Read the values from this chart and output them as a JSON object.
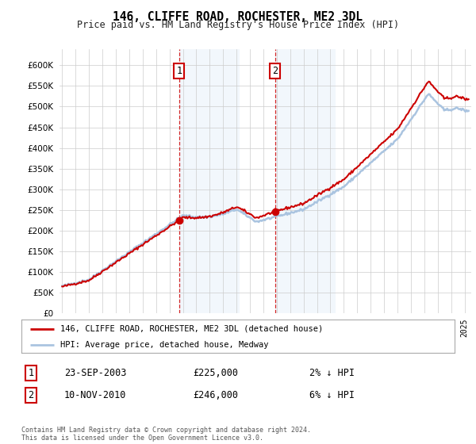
{
  "title": "146, CLIFFE ROAD, ROCHESTER, ME2 3DL",
  "subtitle": "Price paid vs. HM Land Registry's House Price Index (HPI)",
  "hpi_color": "#aac4e0",
  "price_color": "#cc0000",
  "purchase1_date_label": "23-SEP-2003",
  "purchase1_price": 225000,
  "purchase1_pct": "2%",
  "purchase1_year": 2003.73,
  "purchase2_date_label": "10-NOV-2010",
  "purchase2_price": 246000,
  "purchase2_pct": "6%",
  "purchase2_year": 2010.86,
  "ylim_min": 0,
  "ylim_max": 640000,
  "yticks": [
    0,
    50000,
    100000,
    150000,
    200000,
    250000,
    300000,
    350000,
    400000,
    450000,
    500000,
    550000,
    600000
  ],
  "start_year": 1995,
  "end_year": 2025,
  "legend1": "146, CLIFFE ROAD, ROCHESTER, ME2 3DL (detached house)",
  "legend2": "HPI: Average price, detached house, Medway",
  "footnote": "Contains HM Land Registry data © Crown copyright and database right 2024.\nThis data is licensed under the Open Government Licence v3.0.",
  "bg_color": "#ffffff",
  "plot_bg": "#ffffff",
  "grid_color": "#cccccc",
  "shaded_region_color": "#cce0f5"
}
